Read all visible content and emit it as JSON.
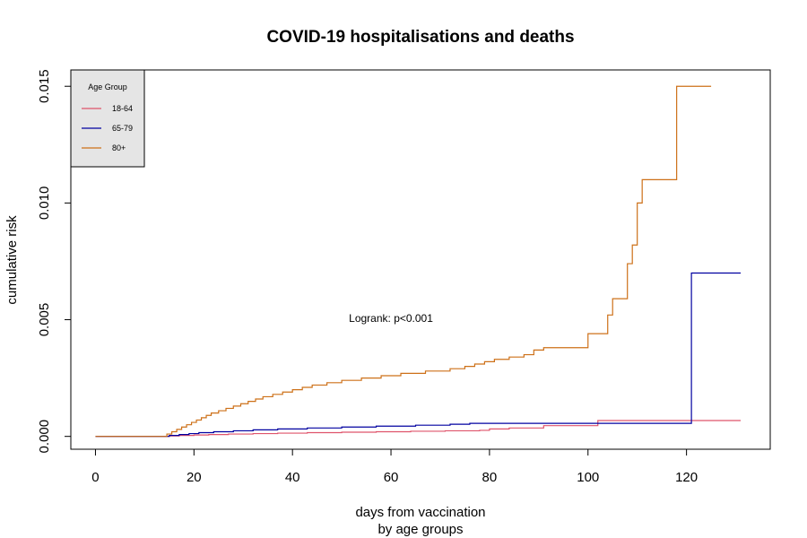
{
  "chart_data": {
    "type": "line",
    "step": true,
    "title": "COVID-19 hospitalisations and deaths",
    "xlabel": "days from vaccination",
    "xlabel_line2": "by age groups",
    "ylabel": "cumulative risk",
    "xlim": [
      -5,
      137
    ],
    "ylim": [
      -0.00055,
      0.0157
    ],
    "x_ticks": [
      0,
      20,
      40,
      60,
      80,
      100,
      120
    ],
    "x_tick_labels": [
      "0",
      "20",
      "40",
      "60",
      "80",
      "100",
      "120"
    ],
    "y_ticks": [
      0,
      0.005,
      0.01,
      0.015
    ],
    "y_tick_labels": [
      "0.000",
      "0.005",
      "0.010",
      "0.015"
    ],
    "grid": false,
    "annotation": {
      "text": "Logrank: p<0.001",
      "x": 60,
      "y": 0.0049
    },
    "legend": {
      "title": "Age Group",
      "placement": "top-left",
      "background": "#e5e5e5"
    },
    "series": [
      {
        "name": "18-64",
        "color": "#df536b",
        "points": [
          [
            0,
            0
          ],
          [
            14,
            0
          ],
          [
            15,
            2e-05
          ],
          [
            17,
            4e-05
          ],
          [
            20,
            6e-05
          ],
          [
            23,
            8e-05
          ],
          [
            27,
            0.0001
          ],
          [
            32,
            0.00012
          ],
          [
            37,
            0.00014
          ],
          [
            43,
            0.00016
          ],
          [
            50,
            0.00018
          ],
          [
            57,
            0.0002
          ],
          [
            64,
            0.00022
          ],
          [
            71,
            0.00024
          ],
          [
            78,
            0.00026
          ],
          [
            80,
            0.00032
          ],
          [
            84,
            0.00036
          ],
          [
            91,
            0.00046
          ],
          [
            102,
            0.00068
          ],
          [
            120,
            0.00068
          ],
          [
            131,
            0.00068
          ]
        ]
      },
      {
        "name": "65-79",
        "color": "#0000a0",
        "points": [
          [
            0,
            0
          ],
          [
            14,
            0
          ],
          [
            15,
            4e-05
          ],
          [
            17,
            8e-05
          ],
          [
            19,
            0.00012
          ],
          [
            21,
            0.00016
          ],
          [
            24,
            0.0002
          ],
          [
            28,
            0.00024
          ],
          [
            32,
            0.00028
          ],
          [
            37,
            0.00032
          ],
          [
            43,
            0.00036
          ],
          [
            50,
            0.0004
          ],
          [
            57,
            0.00044
          ],
          [
            65,
            0.00048
          ],
          [
            72,
            0.00052
          ],
          [
            76,
            0.00056
          ],
          [
            102,
            0.00056
          ],
          [
            121,
            0.007
          ],
          [
            131,
            0.007
          ]
        ]
      },
      {
        "name": "80+",
        "color": "#cd7018",
        "points": [
          [
            0,
            0
          ],
          [
            14,
            0
          ],
          [
            14.5,
            0.0001
          ],
          [
            15.5,
            0.0002
          ],
          [
            16.5,
            0.0003
          ],
          [
            17.5,
            0.0004
          ],
          [
            18.5,
            0.0005
          ],
          [
            19.5,
            0.0006
          ],
          [
            20.5,
            0.0007
          ],
          [
            21.5,
            0.0008
          ],
          [
            22.5,
            0.0009
          ],
          [
            23.5,
            0.001
          ],
          [
            25,
            0.0011
          ],
          [
            26.5,
            0.0012
          ],
          [
            28,
            0.0013
          ],
          [
            29.5,
            0.0014
          ],
          [
            31,
            0.0015
          ],
          [
            32.5,
            0.0016
          ],
          [
            34,
            0.0017
          ],
          [
            36,
            0.0018
          ],
          [
            38,
            0.0019
          ],
          [
            40,
            0.002
          ],
          [
            42,
            0.0021
          ],
          [
            44,
            0.0022
          ],
          [
            47,
            0.0023
          ],
          [
            50,
            0.0024
          ],
          [
            54,
            0.0025
          ],
          [
            58,
            0.0026
          ],
          [
            62,
            0.0027
          ],
          [
            67,
            0.0028
          ],
          [
            72,
            0.0029
          ],
          [
            75,
            0.003
          ],
          [
            77,
            0.0031
          ],
          [
            79,
            0.0032
          ],
          [
            81,
            0.0033
          ],
          [
            84,
            0.0034
          ],
          [
            87,
            0.0035
          ],
          [
            89,
            0.0037
          ],
          [
            91,
            0.0038
          ],
          [
            100,
            0.0044
          ],
          [
            104,
            0.0052
          ],
          [
            105,
            0.0059
          ],
          [
            108,
            0.0074
          ],
          [
            109,
            0.0082
          ],
          [
            110,
            0.01
          ],
          [
            111,
            0.011
          ],
          [
            118,
            0.015
          ],
          [
            125,
            0.015
          ]
        ]
      }
    ]
  }
}
